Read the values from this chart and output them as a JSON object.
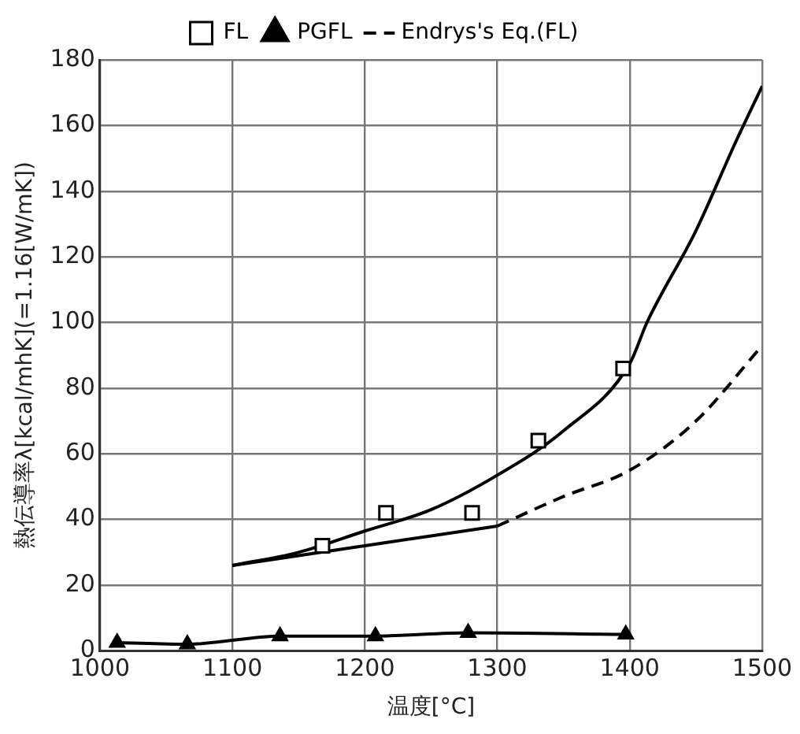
{
  "chart_data": {
    "type": "scatter",
    "xlabel": "温度[°C]",
    "ylabel": "熱伝導率λ[kcal/mhK](=1.16[W/mK])",
    "xlim": [
      1000,
      1500
    ],
    "xticks": [
      1000,
      1100,
      1200,
      1300,
      1400,
      1500
    ],
    "ylim": [
      0,
      180
    ],
    "yticks": [
      0,
      20,
      40,
      60,
      80,
      100,
      120,
      140,
      160,
      180
    ],
    "grid": true,
    "legend": "top",
    "series": [
      {
        "name": "FL",
        "type": "scatter",
        "marker": "square",
        "color": "#000000",
        "x": [
          1168,
          1216,
          1281,
          1331,
          1395
        ],
        "values": [
          32,
          42,
          42,
          64,
          86
        ]
      },
      {
        "name": "PGFL",
        "type": "line",
        "marker": "triangle",
        "line_style": "solid",
        "color": "#000000",
        "x": [
          1013,
          1066,
          1136,
          1208,
          1278,
          1397
        ],
        "values": [
          2.5,
          2,
          4.5,
          4.5,
          5.5,
          5
        ]
      },
      {
        "type": "line",
        "marker": "none",
        "line_style": "solid",
        "color": "#000000",
        "x": [
          1100,
          1150,
          1200,
          1250,
          1300,
          1350,
          1400,
          1413,
          1450,
          1480,
          1500
        ],
        "values": [
          26,
          30,
          36.5,
          43,
          53.5,
          67,
          87.5,
          100,
          128,
          155,
          172
        ]
      },
      {
        "type": "line",
        "marker": "none",
        "line_style": "solid",
        "color": "#000000",
        "x": [
          1100,
          1150,
          1200,
          1250,
          1300
        ],
        "values": [
          26,
          29,
          32,
          35,
          38
        ]
      },
      {
        "name": "Endrys's Eq.(FL)",
        "type": "line",
        "marker": "none",
        "line_style": "dashed",
        "color": "#000000",
        "x": [
          1300,
          1350,
          1400,
          1450,
          1500
        ],
        "values": [
          38,
          47,
          55,
          70,
          93
        ]
      }
    ]
  }
}
